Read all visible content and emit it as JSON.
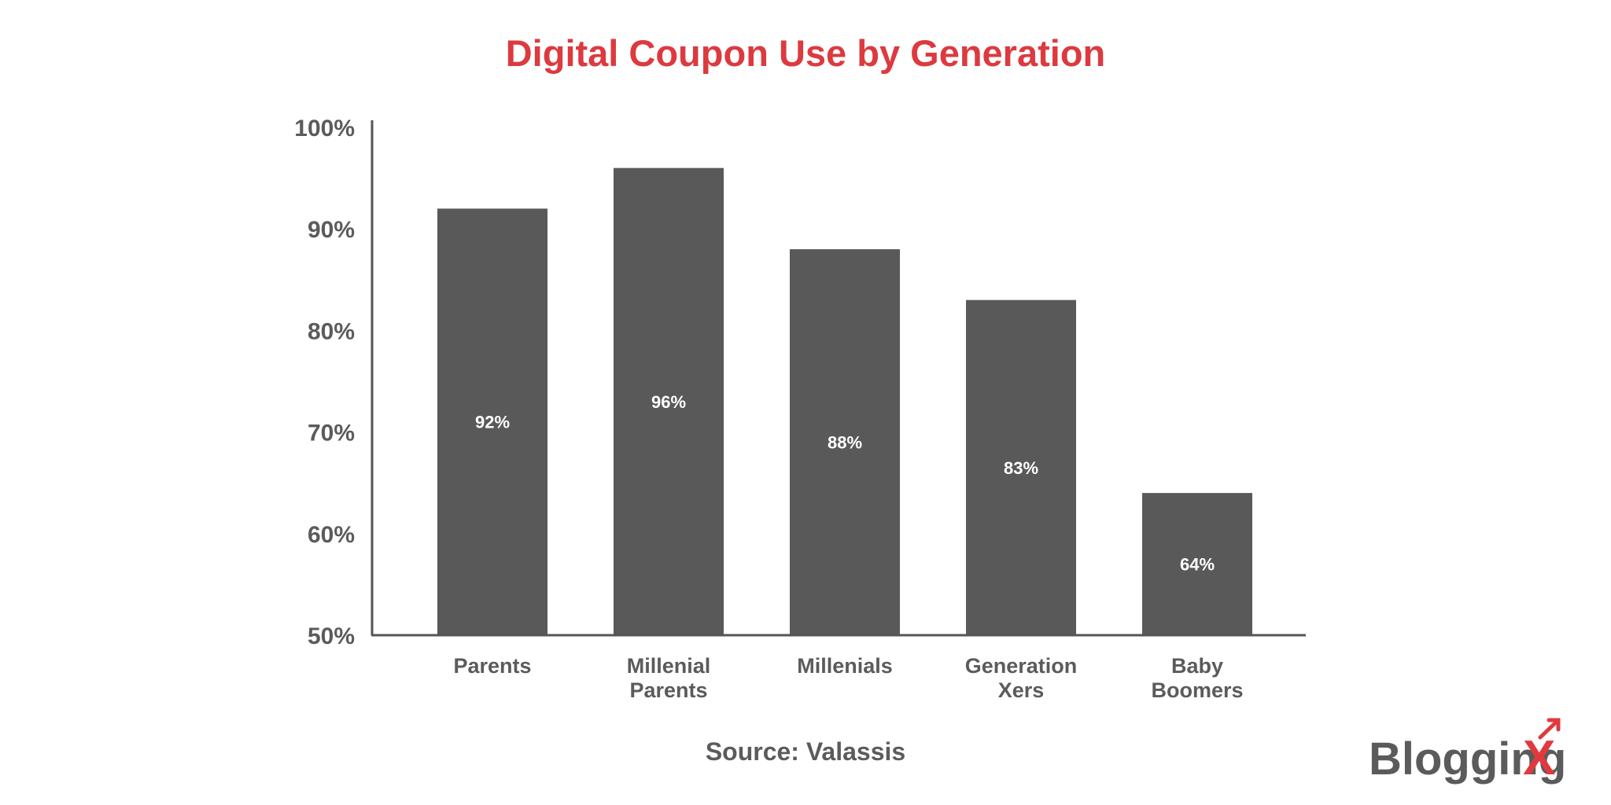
{
  "chart_data": {
    "type": "bar",
    "title": "Digital Coupon Use by Generation",
    "categories": [
      [
        "Parents"
      ],
      [
        "Millenial",
        "Parents"
      ],
      [
        "Millenials"
      ],
      [
        "Generation",
        "Xers"
      ],
      [
        "Baby",
        "Boomers"
      ]
    ],
    "values": [
      92,
      96,
      88,
      83,
      64
    ],
    "data_labels": [
      "92%",
      "96%",
      "88%",
      "83%",
      "64%"
    ],
    "ylim": [
      50,
      100
    ],
    "yticks": [
      50,
      60,
      70,
      80,
      90,
      100
    ],
    "ytick_labels": [
      "50%",
      "60%",
      "70%",
      "80%",
      "90%",
      "100%"
    ],
    "xlabel": "",
    "ylabel": "",
    "grid": false,
    "bar_color": "#595959",
    "title_color": "#dc3a3f"
  },
  "source": "Source: Valassis",
  "logo": {
    "text": "BloggingX",
    "colors": {
      "text": "#5b5b5b",
      "x": "#e03a3e"
    }
  }
}
